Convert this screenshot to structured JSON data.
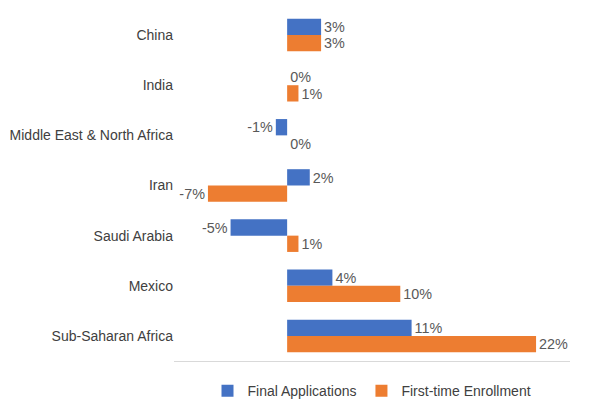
{
  "chart_data": {
    "type": "bar",
    "orientation": "horizontal",
    "categories": [
      "China",
      "India",
      "Middle East & North Africa",
      "Iran",
      "Saudi Arabia",
      "Mexico",
      "Sub-Saharan Africa"
    ],
    "series": [
      {
        "name": "Final Applications",
        "color": "#4472c4",
        "values": [
          3,
          0,
          -1,
          2,
          -5,
          4,
          11
        ],
        "value_labels": [
          "3%",
          "0%",
          "-1%",
          "2%",
          "-5%",
          "4%",
          "11%"
        ]
      },
      {
        "name": "First-time Enrollment",
        "color": "#ed7d31",
        "values": [
          3,
          1,
          0,
          -7,
          1,
          10,
          22
        ],
        "value_labels": [
          "3%",
          "1%",
          "0%",
          "-7%",
          "1%",
          "10%",
          "22%"
        ]
      }
    ],
    "xlim": [
      -10,
      25
    ],
    "xticks": [],
    "grid": false,
    "data_labels": true,
    "tick_labels": "y",
    "legend": "bottom"
  }
}
